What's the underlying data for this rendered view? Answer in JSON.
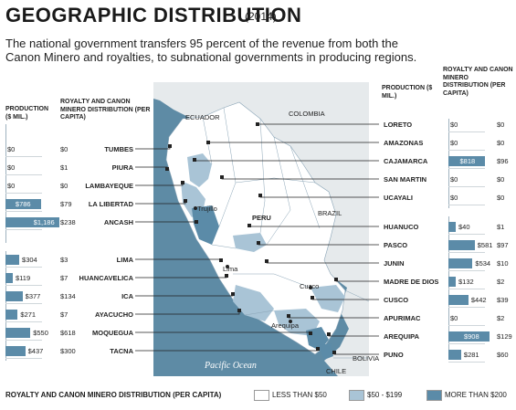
{
  "title": "GEOGRAPHIC DISTRIBUTION",
  "year": "(2014)",
  "subtitle": "The national government transfers 95 percent of the revenue from both the Canon Minero and royalties, to subnational governments in producing regions.",
  "left_headers": {
    "production": "PRODUCTION ($ MIL.)",
    "distribution": "ROYALTY AND CANON MINERO DISTRIBUTION (PER CAPITA)"
  },
  "right_headers": {
    "production": "PRODUCTION ($ MIL.)",
    "distribution": "ROYALTY AND CANON MINERO DISTRIBUTION (PER CAPITA)"
  },
  "left_regions": [
    {
      "name": "TUMBES",
      "production": "$0",
      "production_value": 0,
      "distribution": "$0"
    },
    {
      "name": "PIURA",
      "production": "$0",
      "production_value": 0,
      "distribution": "$1"
    },
    {
      "name": "LAMBAYEQUE",
      "production": "$0",
      "production_value": 0,
      "distribution": "$0"
    },
    {
      "name": "LA LIBERTAD",
      "production": "$786",
      "production_value": 786,
      "distribution": "$79"
    },
    {
      "name": "ANCASH",
      "production": "$1,186",
      "production_value": 1186,
      "distribution": "$238"
    },
    {
      "name": "LIMA",
      "production": "$304",
      "production_value": 304,
      "distribution": "$3"
    },
    {
      "name": "HUANCAVELICA",
      "production": "$119",
      "production_value": 119,
      "distribution": "$7"
    },
    {
      "name": "ICA",
      "production": "$377",
      "production_value": 377,
      "distribution": "$134"
    },
    {
      "name": "AYACUCHO",
      "production": "$271",
      "production_value": 271,
      "distribution": "$7"
    },
    {
      "name": "MOQUEGUA",
      "production": "$550",
      "production_value": 550,
      "distribution": "$618"
    },
    {
      "name": "TACNA",
      "production": "$437",
      "production_value": 437,
      "distribution": "$300"
    }
  ],
  "right_regions": [
    {
      "name": "LORETO",
      "production": "$0",
      "production_value": 0,
      "distribution": "$0"
    },
    {
      "name": "AMAZONAS",
      "production": "$0",
      "production_value": 0,
      "distribution": "$0"
    },
    {
      "name": "CAJAMARCA",
      "production": "$818",
      "production_value": 818,
      "distribution": "$96"
    },
    {
      "name": "SAN MARTIN",
      "production": "$0",
      "production_value": 0,
      "distribution": "$0"
    },
    {
      "name": "UCAYALI",
      "production": "$0",
      "production_value": 0,
      "distribution": "$0"
    },
    {
      "name": "HUANUCO",
      "production": "$40",
      "production_value": 40,
      "distribution": "$1"
    },
    {
      "name": "PASCO",
      "production": "$581",
      "production_value": 581,
      "distribution": "$97"
    },
    {
      "name": "JUNIN",
      "production": "$534",
      "production_value": 534,
      "distribution": "$10"
    },
    {
      "name": "MADRE DE DIOS",
      "production": "$132",
      "production_value": 132,
      "distribution": "$2"
    },
    {
      "name": "CUSCO",
      "production": "$442",
      "production_value": 442,
      "distribution": "$39"
    },
    {
      "name": "APURIMAC",
      "production": "$0",
      "production_value": 0,
      "distribution": "$2"
    },
    {
      "name": "AREQUIPA",
      "production": "$908",
      "production_value": 908,
      "distribution": "$129"
    },
    {
      "name": "PUNO",
      "production": "$281",
      "production_value": 281,
      "distribution": "$60"
    }
  ],
  "map_labels": {
    "ecuador": "ECUADOR",
    "colombia": "COLOMBIA",
    "brazil": "BRAZIL",
    "peru": "PERU",
    "bolivia": "BOLIVIA",
    "chile": "CHILE",
    "ocean": "Pacific Ocean",
    "trujillo": "Trujillo",
    "lima": "Lima",
    "cuzco": "Cuzco",
    "arequipa": "Arequipa"
  },
  "legend": {
    "title": "ROYALTY AND CANON MINERO DISTRIBUTION (PER CAPITA)",
    "items": [
      {
        "label": "LESS THAN $50",
        "color": "#ffffff"
      },
      {
        "label": "$50 - $199",
        "color": "#a9c4d6"
      },
      {
        "label": "MORE THAN $200",
        "color": "#5b8ba8"
      }
    ]
  },
  "colors": {
    "sea": "#5e8ba5",
    "land_light": "#ffffff",
    "land_mid": "#a9c4d6",
    "land_dark": "#5b8ba8",
    "neighbor": "#e6eaec"
  }
}
